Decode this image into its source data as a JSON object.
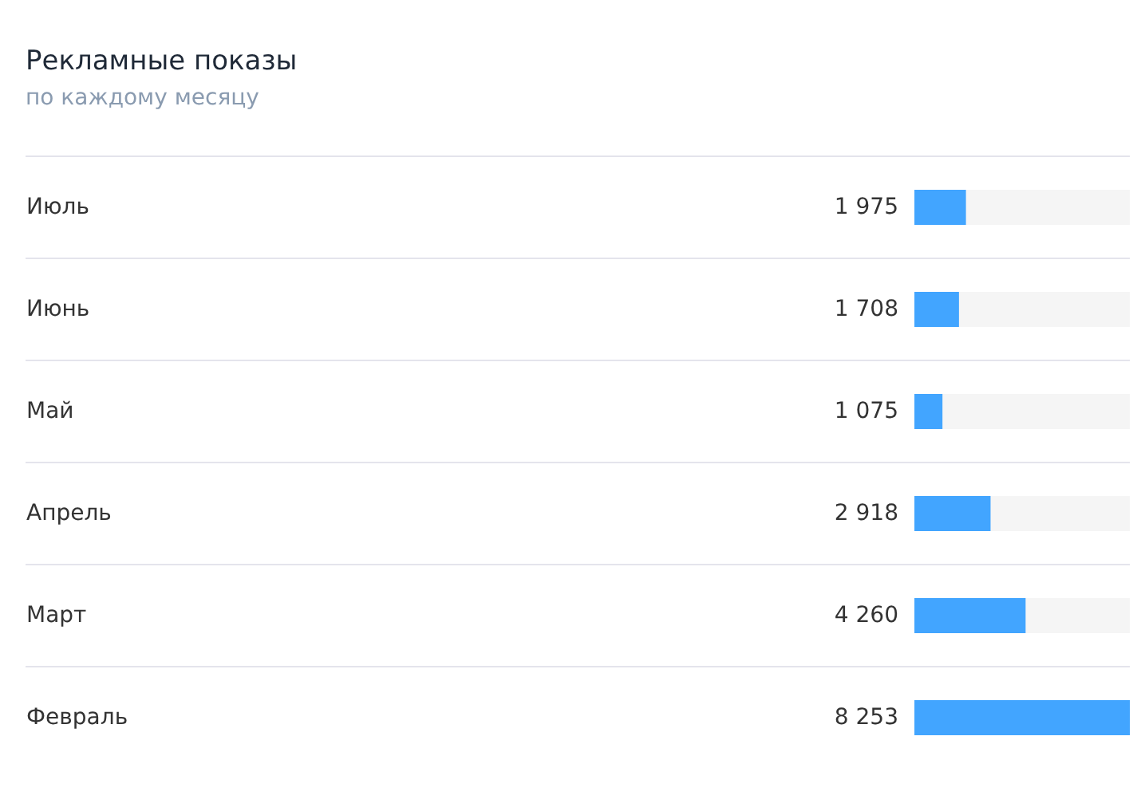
{
  "chart_data": {
    "type": "bar",
    "orientation": "horizontal",
    "title": "Рекламные показы",
    "subtitle": "по каждому месяцу",
    "categories": [
      "Июль",
      "Июнь",
      "Май",
      "Апрель",
      "Март",
      "Февраль"
    ],
    "values": [
      1975,
      1708,
      1075,
      2918,
      4260,
      8253
    ],
    "value_labels": [
      "1 975",
      "1 708",
      "1 075",
      "2 918",
      "4 260",
      "8 253"
    ],
    "color": "#42a5ff",
    "xlim": [
      0,
      8253
    ],
    "grid": "y",
    "tick_labels": "y"
  }
}
